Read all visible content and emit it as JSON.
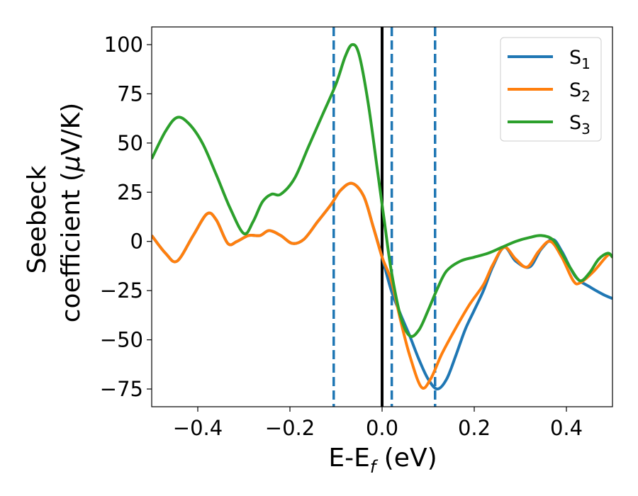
{
  "chart_data": {
    "type": "line",
    "xlabel": "E-E",
    "xlabel_sub": "f",
    "xlabel_unit": " (eV)",
    "ylabel_line1": "Seebeck",
    "ylabel_line2": "coefficient  (",
    "ylabel_mu": "μ",
    "ylabel_unit": "V/K)",
    "xlim": [
      -0.5,
      0.5
    ],
    "ylim": [
      -84,
      109
    ],
    "x_ticks": [
      -0.4,
      -0.2,
      0.0,
      0.2,
      0.4
    ],
    "x_tick_labels": [
      "−0.4",
      "−0.2",
      "0.0",
      "0.2",
      "0.4"
    ],
    "y_ticks": [
      -75,
      -50,
      -25,
      0,
      25,
      50,
      75,
      100
    ],
    "y_tick_labels": [
      "−75",
      "−50",
      "−25",
      "0",
      "25",
      "50",
      "75",
      "100"
    ],
    "grid": false,
    "legend_position": "top-right",
    "vertical_lines": [
      {
        "x": -0.105,
        "style": "dashed",
        "color": "#1f77b4"
      },
      {
        "x": 0.0,
        "style": "solid",
        "color": "#000000"
      },
      {
        "x": 0.021,
        "style": "dashed",
        "color": "#1f77b4"
      },
      {
        "x": 0.115,
        "style": "dashed",
        "color": "#1f77b4"
      }
    ],
    "series": [
      {
        "name": "S",
        "subscript": "1",
        "color": "#1f77b4",
        "points": [
          [
            -0.5,
            3
          ],
          [
            -0.47,
            -6
          ],
          [
            -0.445,
            -10
          ],
          [
            -0.41,
            3
          ],
          [
            -0.38,
            14
          ],
          [
            -0.36,
            11
          ],
          [
            -0.335,
            -1
          ],
          [
            -0.315,
            0
          ],
          [
            -0.29,
            3
          ],
          [
            -0.265,
            3
          ],
          [
            -0.245,
            5.5
          ],
          [
            -0.22,
            3
          ],
          [
            -0.195,
            -1
          ],
          [
            -0.17,
            1
          ],
          [
            -0.14,
            10
          ],
          [
            -0.11,
            19
          ],
          [
            -0.09,
            26
          ],
          [
            -0.065,
            29.5
          ],
          [
            -0.04,
            23
          ],
          [
            -0.02,
            8
          ],
          [
            0.0,
            -8
          ],
          [
            0.02,
            -25
          ],
          [
            0.04,
            -37
          ],
          [
            0.06,
            -48
          ],
          [
            0.08,
            -60
          ],
          [
            0.1,
            -70
          ],
          [
            0.12,
            -75
          ],
          [
            0.14,
            -70
          ],
          [
            0.16,
            -58
          ],
          [
            0.18,
            -45
          ],
          [
            0.2,
            -35
          ],
          [
            0.22,
            -25
          ],
          [
            0.24,
            -13
          ],
          [
            0.265,
            -3
          ],
          [
            0.29,
            -10
          ],
          [
            0.32,
            -13
          ],
          [
            0.345,
            -4
          ],
          [
            0.37,
            1
          ],
          [
            0.39,
            -5
          ],
          [
            0.42,
            -18
          ],
          [
            0.45,
            -23
          ],
          [
            0.48,
            -27
          ],
          [
            0.5,
            -29
          ]
        ]
      },
      {
        "name": "S",
        "subscript": "2",
        "color": "#ff7f0e",
        "points": [
          [
            -0.5,
            3
          ],
          [
            -0.47,
            -6
          ],
          [
            -0.445,
            -10
          ],
          [
            -0.41,
            3
          ],
          [
            -0.38,
            14
          ],
          [
            -0.36,
            11
          ],
          [
            -0.335,
            -1
          ],
          [
            -0.315,
            0
          ],
          [
            -0.29,
            3
          ],
          [
            -0.265,
            3
          ],
          [
            -0.245,
            5.5
          ],
          [
            -0.22,
            3
          ],
          [
            -0.195,
            -1
          ],
          [
            -0.17,
            1
          ],
          [
            -0.14,
            10
          ],
          [
            -0.11,
            19
          ],
          [
            -0.09,
            26
          ],
          [
            -0.065,
            29.5
          ],
          [
            -0.04,
            23
          ],
          [
            -0.02,
            8
          ],
          [
            0.0,
            -8
          ],
          [
            0.02,
            -20
          ],
          [
            0.04,
            -40
          ],
          [
            0.06,
            -58
          ],
          [
            0.085,
            -74
          ],
          [
            0.105,
            -70
          ],
          [
            0.13,
            -57
          ],
          [
            0.16,
            -44
          ],
          [
            0.19,
            -32
          ],
          [
            0.22,
            -22
          ],
          [
            0.24,
            -12
          ],
          [
            0.265,
            -3
          ],
          [
            0.29,
            -9
          ],
          [
            0.315,
            -13
          ],
          [
            0.34,
            -5
          ],
          [
            0.365,
            0
          ],
          [
            0.39,
            -8
          ],
          [
            0.415,
            -20
          ],
          [
            0.43,
            -21
          ],
          [
            0.46,
            -15
          ],
          [
            0.49,
            -7
          ],
          [
            0.5,
            -8
          ]
        ]
      },
      {
        "name": "S",
        "subscript": "3",
        "color": "#2ca02c",
        "points": [
          [
            -0.5,
            42
          ],
          [
            -0.47,
            56
          ],
          [
            -0.445,
            63
          ],
          [
            -0.42,
            60
          ],
          [
            -0.39,
            50
          ],
          [
            -0.36,
            34
          ],
          [
            -0.33,
            17
          ],
          [
            -0.3,
            4
          ],
          [
            -0.28,
            10
          ],
          [
            -0.26,
            20
          ],
          [
            -0.24,
            24
          ],
          [
            -0.22,
            24
          ],
          [
            -0.19,
            32
          ],
          [
            -0.16,
            48
          ],
          [
            -0.13,
            64
          ],
          [
            -0.1,
            80
          ],
          [
            -0.08,
            94
          ],
          [
            -0.065,
            100
          ],
          [
            -0.05,
            95
          ],
          [
            -0.03,
            70
          ],
          [
            -0.01,
            36
          ],
          [
            0.005,
            10
          ],
          [
            0.02,
            -15
          ],
          [
            0.04,
            -38
          ],
          [
            0.06,
            -48
          ],
          [
            0.08,
            -45
          ],
          [
            0.1,
            -35
          ],
          [
            0.12,
            -24
          ],
          [
            0.14,
            -15
          ],
          [
            0.17,
            -10
          ],
          [
            0.2,
            -8
          ],
          [
            0.23,
            -6
          ],
          [
            0.26,
            -3
          ],
          [
            0.29,
            0
          ],
          [
            0.32,
            2
          ],
          [
            0.345,
            3
          ],
          [
            0.37,
            1
          ],
          [
            0.39,
            -6
          ],
          [
            0.41,
            -14
          ],
          [
            0.43,
            -20
          ],
          [
            0.45,
            -16
          ],
          [
            0.47,
            -9
          ],
          [
            0.49,
            -6
          ],
          [
            0.5,
            -8
          ]
        ]
      }
    ]
  }
}
